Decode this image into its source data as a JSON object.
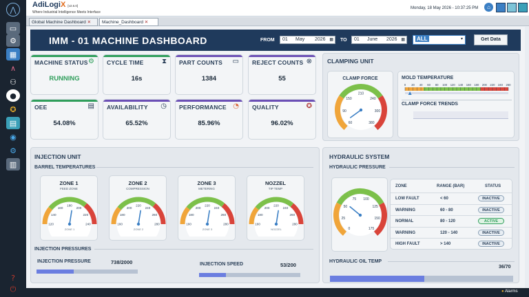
{
  "app": {
    "name": "AdiLogi",
    "name_x": "X",
    "version": "[v2.6.0]",
    "tagline": "Where Industrial Intelligence Meets Interface",
    "datetime": "Monday, 18 May 2026 - 10:37:25 PM"
  },
  "tabs": [
    {
      "label": "Global Machine Dashboard"
    },
    {
      "label": "Machine_Dashboard"
    }
  ],
  "header": {
    "title": "IMM - 01 MACHINE DASHBOARD",
    "from_label": "FROM",
    "to_label": "TO",
    "from": {
      "day": "01",
      "month": "May",
      "year": "2026"
    },
    "to": {
      "day": "01",
      "month": "June",
      "year": "2026"
    },
    "filter": "ALL",
    "get_data": "Get Data"
  },
  "kpis": [
    {
      "title": "MACHINE STATUS",
      "value": "RUNNING",
      "icon": "gears-icon",
      "color": "#2f9e5b"
    },
    {
      "title": "CYCLE TIME",
      "value": "16s",
      "icon": "hourglass-icon",
      "color": "#2f9e5b"
    },
    {
      "title": "PART COUNTS",
      "value": "1384",
      "icon": "counter-icon",
      "color": "#6b4fb5"
    },
    {
      "title": "REJECT COUNTS",
      "value": "55",
      "icon": "reject-icon",
      "color": "#6b4fb5"
    },
    {
      "title": "OEE",
      "value": "54.08%",
      "icon": "report-icon",
      "color": "#2f9e5b"
    },
    {
      "title": "AVAILABILITY",
      "value": "65.52%",
      "icon": "clock-check-icon",
      "color": "#6b4fb5"
    },
    {
      "title": "PERFORMANCE",
      "value": "85.96%",
      "icon": "gauge-icon",
      "color": "#6b4fb5"
    },
    {
      "title": "QUALITY",
      "value": "96.02%",
      "icon": "ribbon-icon",
      "color": "#6b4fb5"
    }
  ],
  "clamping": {
    "title": "CLAMPING UNIT",
    "clamp_force": "CLAMP FORCE",
    "mold_temp": "MOLD TEMPERATURE",
    "trends": "CLAMP FORCE TRENDS",
    "gauge_ticks": [
      "60",
      "90",
      "150",
      "210",
      "240",
      "300",
      "380"
    ],
    "gauge_value": 0.05,
    "mold_scale": [
      "0",
      "20",
      "40",
      "60",
      "80",
      "100",
      "120",
      "140",
      "160",
      "180",
      "200",
      "220",
      "240",
      "260"
    ],
    "mold_value": 2
  },
  "injection": {
    "title": "INJECTION UNIT",
    "barrel": "BARREL TEMPERATURES",
    "zones": [
      {
        "title": "ZONE 1",
        "sub": "FEED ZONE",
        "label": "ZONE 1",
        "ticks": [
          "120",
          "140",
          "160",
          "180",
          "200",
          "220",
          "240"
        ],
        "value": 0.55
      },
      {
        "title": "ZONE 2",
        "sub": "COMPRESSION",
        "label": "ZONE 2",
        "ticks": [
          "160",
          "180",
          "200",
          "220",
          "240",
          "260",
          "280"
        ],
        "value": 0.55
      },
      {
        "title": "ZONE 3",
        "sub": "METERING",
        "label": "ZONE 3",
        "ticks": [
          "160",
          "180",
          "200",
          "220",
          "240",
          "260",
          "280"
        ],
        "value": 0.55
      },
      {
        "title": "NOZZEL",
        "sub": "TIP TEMP",
        "label": "NOZZEL",
        "ticks": [
          "160",
          "180",
          "200",
          "220",
          "240",
          "260",
          "280"
        ],
        "value": 0.55
      }
    ],
    "pressures": "INJECTION PRESSURES",
    "inj_pressure": {
      "label": "INJECTION PRESSURE",
      "value": "738/2000",
      "ratio": 0.369
    },
    "inj_speed": {
      "label": "INJECTION SPEED",
      "value": "53/200",
      "ratio": 0.265
    }
  },
  "hydraulic": {
    "title": "HYDRAULIC SYSTEM",
    "pressure": "HYDRAULIC PRESSURE",
    "gauge_ticks": [
      "0",
      "25",
      "50",
      "75",
      "100",
      "125",
      "150",
      "175"
    ],
    "gauge_value": 0.32,
    "headers": [
      "ZONE",
      "RANGE (BAR)",
      "STATUS"
    ],
    "rows": [
      {
        "zone": "LOW FAULT",
        "range": "< 60",
        "status": "INACTIVE"
      },
      {
        "zone": "WARNING",
        "range": "60 - 80",
        "status": "INACTIVE"
      },
      {
        "zone": "NORMAL",
        "range": "80 - 120",
        "status": "ACTIVE"
      },
      {
        "zone": "WARNING",
        "range": "120 - 140",
        "status": "INACTIVE"
      },
      {
        "zone": "HIGH FAULT",
        "range": "> 140",
        "status": "INACTIVE"
      }
    ],
    "oil_temp": {
      "label": "HYDRAULIC OIL TEMP",
      "value": "36/70",
      "ratio": 0.514
    }
  },
  "footer": {
    "alarms": "Alarms"
  }
}
